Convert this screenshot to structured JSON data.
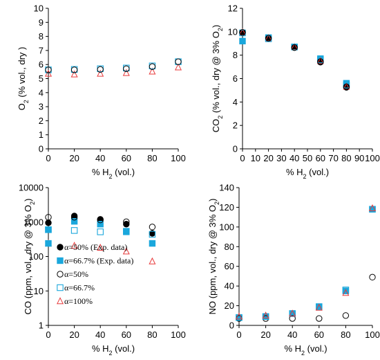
{
  "chart_data": [
    {
      "id": "o2",
      "type": "scatter",
      "ylabel_parts": [
        [
          "O",
          "n"
        ],
        [
          "2",
          "sub"
        ],
        [
          " (% vol., dry )",
          "n"
        ]
      ],
      "xlabel_parts": [
        [
          "% H",
          "n"
        ],
        [
          "2",
          "sub"
        ],
        [
          " (vol.)",
          "n"
        ]
      ],
      "xlim": [
        0,
        100
      ],
      "ylim": [
        0,
        10
      ],
      "xticks": [
        0,
        20,
        40,
        60,
        80,
        100
      ],
      "yticks": [
        0,
        1,
        2,
        3,
        4,
        5,
        6,
        7,
        8,
        9,
        10
      ],
      "log_y": false,
      "grid": false,
      "series": [
        {
          "key": "sim100",
          "marker": "triangle-open",
          "color": "#e8393a",
          "points": [
            [
              0,
              5.35
            ],
            [
              20,
              5.3
            ],
            [
              40,
              5.35
            ],
            [
              60,
              5.4
            ],
            [
              80,
              5.5
            ],
            [
              100,
              5.8
            ]
          ]
        },
        {
          "key": "sim66",
          "marker": "square-open",
          "color": "#1aa7dc",
          "points": [
            [
              0,
              5.62
            ],
            [
              20,
              5.65
            ],
            [
              40,
              5.7
            ],
            [
              60,
              5.75
            ],
            [
              80,
              5.9
            ],
            [
              100,
              6.2
            ]
          ]
        },
        {
          "key": "sim50",
          "marker": "circle-open",
          "color": "#000000",
          "points": [
            [
              0,
              5.62
            ],
            [
              20,
              5.62
            ],
            [
              40,
              5.65
            ],
            [
              60,
              5.7
            ],
            [
              80,
              5.85
            ],
            [
              100,
              6.2
            ]
          ]
        }
      ]
    },
    {
      "id": "co2",
      "type": "scatter",
      "ylabel_parts": [
        [
          "CO",
          "n"
        ],
        [
          "2",
          "sub"
        ],
        [
          " (% vol., dry @ 3% O",
          "n"
        ],
        [
          "2",
          "sub"
        ],
        [
          ")",
          "n"
        ]
      ],
      "xlabel_parts": [
        [
          "% H",
          "n"
        ],
        [
          "2",
          "sub"
        ],
        [
          " (vol.)",
          "n"
        ]
      ],
      "xlim": [
        0,
        100
      ],
      "ylim": [
        0,
        12
      ],
      "xticks": [
        0,
        10,
        20,
        30,
        40,
        50,
        60,
        70,
        80,
        90,
        100
      ],
      "yticks": [
        0,
        2,
        4,
        6,
        8,
        10,
        12
      ],
      "log_y": false,
      "grid": false,
      "series": [
        {
          "key": "exp66",
          "marker": "square-filled",
          "color": "#1aa7dc",
          "points": [
            [
              0,
              9.2
            ],
            [
              20,
              9.5
            ],
            [
              40,
              8.7
            ],
            [
              60,
              7.7
            ],
            [
              80,
              5.6
            ]
          ]
        },
        {
          "key": "exp50",
          "marker": "circle-filled",
          "color": "#000000",
          "points": [
            [
              0,
              9.9
            ],
            [
              20,
              9.4
            ],
            [
              40,
              8.65
            ],
            [
              60,
              7.4
            ],
            [
              80,
              5.25
            ]
          ]
        },
        {
          "key": "sim100",
          "marker": "triangle-open",
          "color": "#e8393a",
          "points": [
            [
              0,
              9.95
            ],
            [
              20,
              9.45
            ],
            [
              40,
              8.7
            ],
            [
              60,
              7.5
            ],
            [
              80,
              5.3
            ]
          ]
        },
        {
          "key": "sim66",
          "marker": "square-open",
          "color": "#1aa7dc",
          "points": [
            [
              0,
              9.9
            ],
            [
              20,
              9.4
            ],
            [
              40,
              8.7
            ],
            [
              60,
              7.6
            ],
            [
              80,
              5.45
            ]
          ]
        },
        {
          "key": "sim50",
          "marker": "circle-open",
          "color": "#000000",
          "points": [
            [
              0,
              9.95
            ],
            [
              20,
              9.45
            ],
            [
              40,
              8.65
            ],
            [
              60,
              7.45
            ],
            [
              80,
              5.3
            ]
          ]
        }
      ]
    },
    {
      "id": "co",
      "type": "scatter",
      "ylabel_parts": [
        [
          "CO (ppm, vol., dry @ 3% O",
          "n"
        ],
        [
          "2",
          "sub"
        ],
        [
          ")",
          "n"
        ]
      ],
      "xlabel_parts": [
        [
          "% H",
          "n"
        ],
        [
          "2",
          "sub"
        ],
        [
          " (vol.)",
          "n"
        ]
      ],
      "xlim": [
        0,
        100
      ],
      "ylim": [
        1,
        10000
      ],
      "xticks": [
        0,
        20,
        40,
        60,
        80,
        100
      ],
      "yticks": [
        1,
        10,
        100,
        1000,
        10000
      ],
      "log_y": true,
      "grid": false,
      "series": [
        {
          "key": "exp50",
          "marker": "circle-filled",
          "color": "#000000",
          "points": [
            [
              0,
              950
            ],
            [
              20,
              1500
            ],
            [
              40,
              1200
            ],
            [
              60,
              870
            ],
            [
              80,
              470
            ]
          ]
        },
        {
          "key": "exp66",
          "marker": "square-filled",
          "color": "#1aa7dc",
          "points": [
            [
              0,
              600
            ],
            [
              20,
              1050
            ],
            [
              40,
              870
            ],
            [
              60,
              520
            ],
            [
              80,
              240
            ]
          ]
        },
        {
          "key": "sim50",
          "marker": "circle-open",
          "color": "#000000",
          "points": [
            [
              0,
              1380
            ],
            [
              20,
              1380
            ],
            [
              40,
              1150
            ],
            [
              60,
              1020
            ],
            [
              80,
              720
            ]
          ]
        },
        {
          "key": "sim66",
          "marker": "square-open",
          "color": "#1aa7dc",
          "points": [
            [
              0,
              600
            ],
            [
              20,
              570
            ],
            [
              40,
              520
            ],
            [
              60,
              540
            ],
            [
              80,
              440
            ]
          ]
        },
        {
          "key": "sim100",
          "marker": "triangle-open",
          "color": "#e8393a",
          "points": [
            [
              0,
              240
            ],
            [
              20,
              205
            ],
            [
              40,
              180
            ],
            [
              60,
              140
            ],
            [
              80,
              72
            ]
          ]
        },
        {
          "key": "exp66b",
          "marker": "square-filled",
          "color": "#1aa7dc",
          "points": [
            [
              0,
              240
            ]
          ]
        }
      ],
      "legend": {
        "position": "bottom-left",
        "entries": [
          {
            "label": "α=50% (Exp. data)",
            "marker": "circle-filled",
            "color": "#000000"
          },
          {
            "label": "α=66.7% (Exp. data)",
            "marker": "square-filled",
            "color": "#1aa7dc"
          },
          {
            "label": "α=50%",
            "marker": "circle-open",
            "color": "#000000"
          },
          {
            "label": "α=66.7%",
            "marker": "square-open",
            "color": "#1aa7dc"
          },
          {
            "label": "α=100%",
            "marker": "triangle-open",
            "color": "#e8393a"
          }
        ]
      }
    },
    {
      "id": "no",
      "type": "scatter",
      "ylabel_parts": [
        [
          "NO (ppm, vol., dry @ 3% O",
          "n"
        ],
        [
          "2",
          "sub"
        ],
        [
          ")",
          "n"
        ]
      ],
      "xlabel_parts": [
        [
          "% H",
          "n"
        ],
        [
          "2",
          "sub"
        ],
        [
          " (vol.)",
          "n"
        ]
      ],
      "xlim": [
        0,
        100
      ],
      "ylim": [
        0,
        140
      ],
      "xticks": [
        0,
        20,
        40,
        60,
        80,
        100
      ],
      "yticks": [
        0,
        20,
        40,
        60,
        80,
        100,
        120,
        140
      ],
      "log_y": false,
      "grid": false,
      "series": [
        {
          "key": "exp66",
          "marker": "square-filled",
          "color": "#1aa7dc",
          "points": [
            [
              0,
              8
            ],
            [
              20,
              9
            ],
            [
              40,
              12
            ],
            [
              60,
              19
            ],
            [
              80,
              35
            ],
            [
              100,
              118
            ]
          ]
        },
        {
          "key": "sim50",
          "marker": "circle-open",
          "color": "#000000",
          "points": [
            [
              0,
              7
            ],
            [
              20,
              7
            ],
            [
              40,
              7
            ],
            [
              60,
              7
            ],
            [
              80,
              10
            ],
            [
              100,
              49
            ]
          ]
        },
        {
          "key": "sim66",
          "marker": "square-open",
          "color": "#1aa7dc",
          "points": [
            [
              0,
              8
            ],
            [
              20,
              9
            ],
            [
              40,
              12
            ],
            [
              60,
              19
            ],
            [
              80,
              36
            ],
            [
              100,
              118
            ]
          ]
        },
        {
          "key": "sim100",
          "marker": "triangle-open",
          "color": "#e8393a",
          "points": [
            [
              0,
              9
            ],
            [
              20,
              10
            ],
            [
              40,
              12
            ],
            [
              60,
              18
            ],
            [
              80,
              33
            ],
            [
              100,
              119
            ]
          ]
        }
      ]
    }
  ]
}
